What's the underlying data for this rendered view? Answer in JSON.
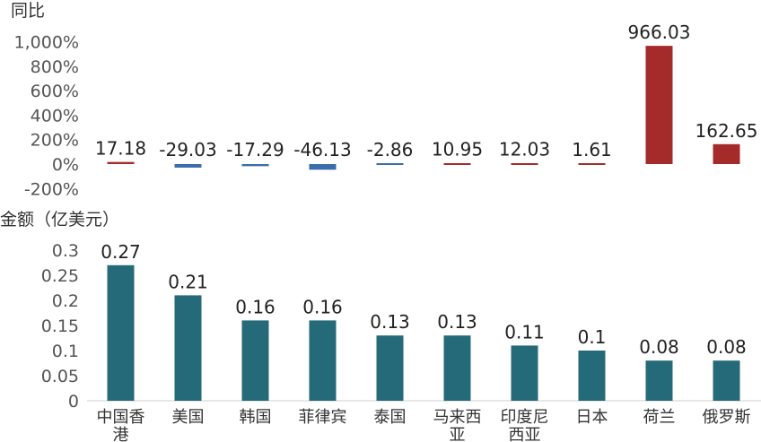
{
  "chart_data": [
    {
      "type": "bar",
      "title": "同比",
      "categories": [
        "中国香港",
        "美国",
        "韩国",
        "菲律宾",
        "泰国",
        "马来西亚",
        "印度尼西亚",
        "日本",
        "荷兰",
        "俄罗斯"
      ],
      "values": [
        17.18,
        -29.03,
        -17.29,
        -46.13,
        -2.86,
        10.95,
        12.03,
        1.61,
        966.03,
        162.65
      ],
      "data_labels": [
        "17.18",
        "-29.03",
        "-17.29",
        "-46.13",
        "-2.86",
        "10.95",
        "12.03",
        "1.61",
        "966.03",
        "162.65"
      ],
      "y_ticks": [
        "1,000%",
        "800%",
        "600%",
        "400%",
        "200%",
        "0%",
        "-200%"
      ],
      "ylim": [
        -200,
        1000
      ],
      "colors": {
        "positive": "#A52A2A",
        "negative": "#3A6DAA"
      },
      "grid": false
    },
    {
      "type": "bar",
      "title": "金额（亿美元）",
      "categories": [
        "中国香港",
        "美国",
        "韩国",
        "菲律宾",
        "泰国",
        "马来西亚",
        "印度尼西亚",
        "日本",
        "荷兰",
        "俄罗斯"
      ],
      "category_lines": [
        [
          "中国香",
          "港"
        ],
        [
          "美国"
        ],
        [
          "韩国"
        ],
        [
          "菲律宾"
        ],
        [
          "泰国"
        ],
        [
          "马来西",
          "亚"
        ],
        [
          "印度尼",
          "西亚"
        ],
        [
          "日本"
        ],
        [
          "荷兰"
        ],
        [
          "俄罗斯"
        ]
      ],
      "values": [
        0.27,
        0.21,
        0.16,
        0.16,
        0.13,
        0.13,
        0.11,
        0.1,
        0.08,
        0.08
      ],
      "data_labels": [
        "0.27",
        "0.21",
        "0.16",
        "0.16",
        "0.13",
        "0.13",
        "0.11",
        "0.1",
        "0.08",
        "0.08"
      ],
      "y_ticks": [
        "0.3",
        "0.25",
        "0.2",
        "0.15",
        "0.1",
        "0.05",
        "0"
      ],
      "ylim": [
        0,
        0.3
      ],
      "colors": {
        "bar": "#256A78"
      },
      "grid": false
    }
  ]
}
